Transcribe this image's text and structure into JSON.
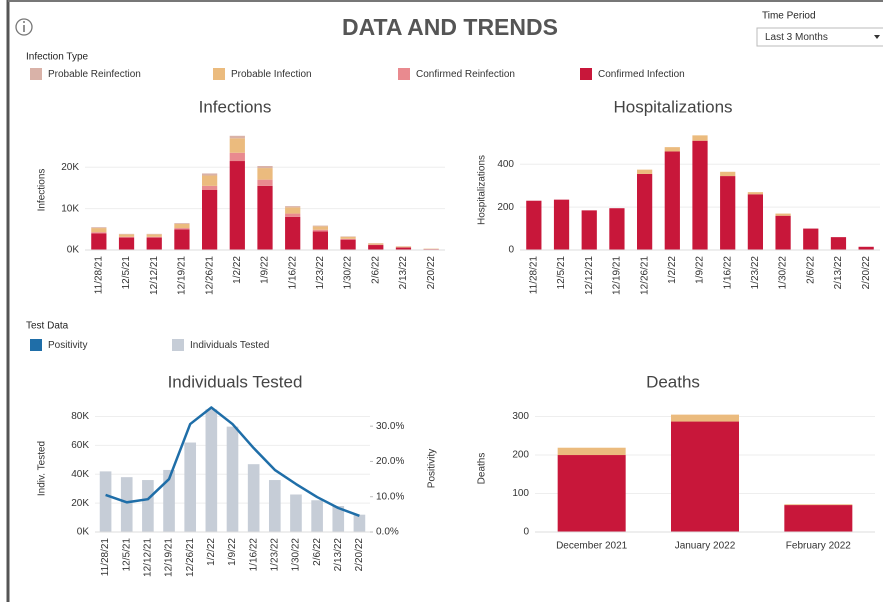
{
  "title": "DATA AND TRENDS",
  "time_period": {
    "label": "Time Period",
    "value": "Last 3 Months"
  },
  "chart_data": [
    {
      "type": "bar",
      "title": "Infections",
      "y_label": "Infections",
      "legend_title": "Infection Type",
      "categories": [
        "11/28/21",
        "12/5/21",
        "12/12/21",
        "12/19/21",
        "12/26/21",
        "1/2/22",
        "1/9/22",
        "1/16/22",
        "1/23/22",
        "1/30/22",
        "2/6/22",
        "2/13/22",
        "2/20/22"
      ],
      "series": [
        {
          "name": "Confirmed Infection",
          "color": "#c8173a",
          "values": [
            4000,
            3000,
            3000,
            5000,
            14500,
            21500,
            15500,
            8000,
            4500,
            2500,
            1200,
            600,
            200
          ]
        },
        {
          "name": "Confirmed Reinfection",
          "color": "#e98a8f",
          "values": [
            300,
            200,
            200,
            300,
            1000,
            2000,
            1500,
            800,
            400,
            200,
            100,
            50,
            20
          ]
        },
        {
          "name": "Probable Infection",
          "color": "#ebbb7e",
          "values": [
            1000,
            600,
            600,
            1000,
            2500,
            3500,
            2800,
            1500,
            800,
            500,
            300,
            200,
            100
          ]
        },
        {
          "name": "Probable Reinfection",
          "color": "#d9b2a8",
          "values": [
            200,
            100,
            100,
            200,
            500,
            600,
            500,
            300,
            200,
            100,
            50,
            30,
            10
          ]
        }
      ],
      "ylim": [
        0,
        29000
      ],
      "yticks": [
        {
          "value": 0,
          "label": "0K"
        },
        {
          "value": 10000,
          "label": "10K"
        },
        {
          "value": 20000,
          "label": "20K"
        }
      ],
      "grid": true
    },
    {
      "type": "bar",
      "title": "Hospitalizations",
      "y_label": "Hospitalizations",
      "categories": [
        "11/28/21",
        "12/5/21",
        "12/12/21",
        "12/19/21",
        "12/26/21",
        "1/2/22",
        "1/9/22",
        "1/16/22",
        "1/23/22",
        "1/30/22",
        "2/6/22",
        "2/13/22",
        "2/20/22"
      ],
      "series": [
        {
          "name": "Confirmed Infection",
          "color": "#c8173a",
          "values": [
            230,
            235,
            185,
            195,
            355,
            460,
            510,
            345,
            260,
            160,
            100,
            60,
            15
          ]
        },
        {
          "name": "Probable Infection",
          "color": "#ebbb7e",
          "values": [
            0,
            0,
            0,
            0,
            20,
            20,
            25,
            20,
            10,
            10,
            0,
            0,
            0
          ]
        }
      ],
      "ylim": [
        0,
        560
      ],
      "yticks": [
        0,
        200,
        400
      ],
      "grid": true
    },
    {
      "type": "combo",
      "title": "Individuals Tested",
      "y_label": "Indiv. Tested",
      "y2_label": "Positivity",
      "legend_title": "Test Data",
      "categories": [
        "11/28/21",
        "12/5/21",
        "12/12/21",
        "12/19/21",
        "12/26/21",
        "1/2/22",
        "1/9/22",
        "1/16/22",
        "1/23/22",
        "1/30/22",
        "2/6/22",
        "2/13/22",
        "2/20/22"
      ],
      "series": [
        {
          "name": "Positivity",
          "color": "#1f6ea8",
          "type": "line",
          "axis": "y2",
          "values": [
            10.5,
            8.4,
            9.3,
            15,
            30.6,
            35.3,
            30.6,
            23.8,
            17.6,
            13.6,
            9.9,
            6.8,
            4.6
          ]
        },
        {
          "name": "Individuals Tested",
          "color": "#c6cdd7",
          "type": "bar",
          "values": [
            42000,
            38000,
            36000,
            43000,
            62000,
            85000,
            73000,
            47000,
            36000,
            26000,
            22000,
            18000,
            12000
          ]
        }
      ],
      "ylim": [
        0,
        88000
      ],
      "yticks": [
        {
          "value": 0,
          "label": "0K"
        },
        {
          "value": 20000,
          "label": "20K"
        },
        {
          "value": 40000,
          "label": "40K"
        },
        {
          "value": 60000,
          "label": "60K"
        },
        {
          "value": 80000,
          "label": "80K"
        }
      ],
      "y2lim": [
        0,
        36
      ],
      "y2ticks": [
        {
          "value": 0,
          "label": "0.0%"
        },
        {
          "value": 10,
          "label": "10.0%"
        },
        {
          "value": 20,
          "label": "20.0%"
        },
        {
          "value": 30,
          "label": "30.0%"
        }
      ],
      "grid": true
    },
    {
      "type": "bar",
      "title": "Deaths",
      "y_label": "Deaths",
      "categories": [
        "December 2021",
        "January 2022",
        "February 2022"
      ],
      "series": [
        {
          "name": "Confirmed Infection",
          "color": "#c8173a",
          "values": [
            200,
            287,
            70
          ]
        },
        {
          "name": "Probable Infection",
          "color": "#ebbb7e",
          "values": [
            19,
            18,
            2
          ]
        }
      ],
      "ylim": [
        0,
        330
      ],
      "yticks": [
        0,
        100,
        200,
        300
      ],
      "grid": true
    }
  ]
}
